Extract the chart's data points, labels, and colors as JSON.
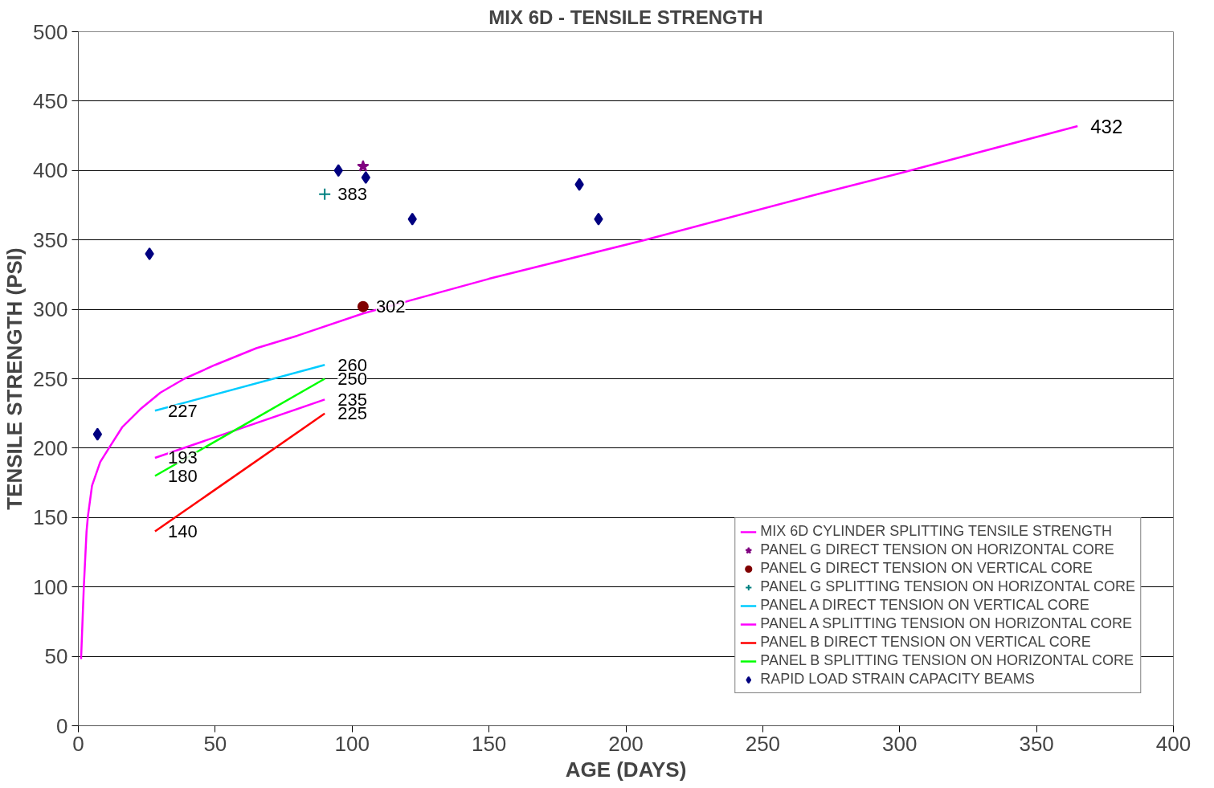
{
  "chart_data": {
    "type": "line",
    "title": "MIX 6D - TENSILE STRENGTH",
    "xlabel": "AGE (DAYS)",
    "ylabel": "TENSILE STRENGTH (PSI)",
    "xlim": [
      0,
      400
    ],
    "xticks": [
      0,
      50,
      100,
      150,
      200,
      250,
      300,
      350,
      400
    ],
    "ylim": [
      0,
      500
    ],
    "yticks": [
      0,
      50,
      100,
      150,
      200,
      250,
      300,
      350,
      400,
      450,
      500
    ],
    "grid": "y",
    "legend": "bottom right",
    "line_style": "solid",
    "series": [
      {
        "name": "MIX 6D CYLINDER SPLITTING TENSILE STRENGTH",
        "color": "#ff00ff",
        "marker": "none",
        "x": [
          1,
          2,
          3,
          3.5,
          5,
          8,
          11.5,
          16,
          22.6,
          30,
          38.7,
          50,
          65,
          80,
          104,
          150,
          207,
          270,
          300,
          365
        ],
        "values": [
          48,
          100,
          140,
          151,
          173,
          190,
          201,
          215,
          228,
          240,
          250,
          260,
          272,
          281,
          297,
          322,
          350,
          383,
          398,
          432
        ],
        "value_labels": [
          null,
          null,
          null,
          null,
          null,
          null,
          null,
          null,
          null,
          null,
          null,
          null,
          null,
          null,
          null,
          null,
          null,
          null,
          null,
          "432"
        ]
      },
      {
        "name": "PANEL G DIRECT TENSION ON HORIZONTAL CORE",
        "type": "scatter",
        "color": "#800080",
        "marker": "star",
        "x": [
          104
        ],
        "values": [
          403
        ],
        "value_labels": [
          null
        ]
      },
      {
        "name": "PANEL G DIRECT TENSION ON VERTICAL CORE",
        "type": "scatter",
        "color": "#800000",
        "marker": "circle",
        "x": [
          104
        ],
        "values": [
          302
        ],
        "value_labels": [
          "302"
        ]
      },
      {
        "name": "PANEL G SPLITTING TENSION ON HORIZONTAL CORE",
        "type": "scatter",
        "color": "#008080",
        "marker": "cross",
        "x": [
          90
        ],
        "values": [
          383
        ],
        "value_labels": [
          "383"
        ]
      },
      {
        "name": "PANEL A DIRECT TENSION ON VERTICAL CORE",
        "type": "line",
        "color": "#00ccff",
        "marker": "none",
        "x": [
          28,
          90
        ],
        "values": [
          227,
          260
        ],
        "value_labels": [
          "227",
          "260"
        ]
      },
      {
        "name": "PANEL A SPLITTING TENSION ON HORIZONTAL CORE",
        "type": "line",
        "color": "#ff00ff",
        "marker": "none",
        "x": [
          28,
          90
        ],
        "values": [
          193,
          235
        ],
        "value_labels": [
          "193",
          "235"
        ]
      },
      {
        "name": "PANEL B DIRECT TENSION ON VERTICAL CORE",
        "type": "line",
        "color": "#ff0000",
        "marker": "none",
        "x": [
          28,
          90
        ],
        "values": [
          140,
          225
        ],
        "value_labels": [
          "140",
          "225"
        ]
      },
      {
        "name": "PANEL B SPLITTING TENSION ON HORIZONTAL CORE",
        "type": "line",
        "color": "#00ff00",
        "marker": "none",
        "x": [
          28,
          90
        ],
        "values": [
          180,
          250
        ],
        "value_labels": [
          "180",
          "250"
        ]
      },
      {
        "name": "RAPID LOAD STRAIN CAPACITY BEAMS",
        "type": "scatter",
        "color": "#000080",
        "marker": "diamond",
        "x": [
          7,
          26,
          95,
          105,
          122,
          183,
          190
        ],
        "values": [
          210,
          340,
          400,
          395,
          365,
          390,
          365
        ],
        "value_labels": [
          null,
          null,
          null,
          null,
          null,
          null,
          null
        ]
      }
    ]
  }
}
